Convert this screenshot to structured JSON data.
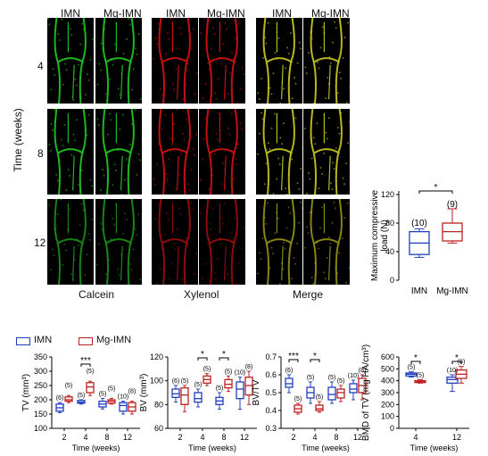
{
  "figure": {
    "col_headers": [
      "IMN",
      "Mg-IMN",
      "IMN",
      "Mg-IMN",
      "IMN",
      "Mg-IMN"
    ],
    "row_labels": [
      "4",
      "8",
      "12"
    ],
    "y_title": "Time (weeks)",
    "stain_labels": [
      "Calcein",
      "Xylenol",
      "Merge"
    ],
    "colors": {
      "calcein": "#22cc22",
      "xylenol": "#dd1111",
      "merge": "#cccc22",
      "imn": "#1f3fbf",
      "mg": "#c02020"
    }
  },
  "legend": {
    "imn_label": "IMN",
    "mg_label": "Mg-IMN"
  },
  "chart_data": [
    {
      "type": "box",
      "panel": "compressive",
      "ylabel": "Maximum compressive load (N)",
      "categories": [
        "IMN",
        "Mg-IMN"
      ],
      "ylim": [
        0,
        125
      ],
      "yticks": [
        0,
        40,
        80,
        120
      ],
      "n": [
        "(10)",
        "(9)"
      ],
      "significance": "*",
      "boxes": [
        {
          "min": 32,
          "q1": 36,
          "median": 52,
          "q3": 68,
          "max": 72
        },
        {
          "min": 52,
          "q1": 55,
          "median": 68,
          "q3": 80,
          "max": 100
        }
      ]
    },
    {
      "type": "box",
      "panel": "TV",
      "ylabel": "TV (mm³)",
      "xlabel": "Time (weeks)",
      "categories": [
        "2",
        "4",
        "8",
        "12"
      ],
      "ylim": [
        100,
        350
      ],
      "yticks": [
        100,
        150,
        200,
        250,
        300,
        350
      ],
      "n_imn": [
        "(6)",
        "(5)",
        "(5)",
        "(10)"
      ],
      "n_mg": [
        "(5)",
        "(5)",
        "(5)",
        "(8)"
      ],
      "significance": [
        {
          "at": "4",
          "mark": "***"
        }
      ],
      "imn": [
        {
          "min": 155,
          "q1": 160,
          "median": 172,
          "q3": 185,
          "max": 190
        },
        {
          "min": 185,
          "q1": 188,
          "median": 192,
          "q3": 198,
          "max": 200
        },
        {
          "min": 168,
          "q1": 175,
          "median": 185,
          "q3": 195,
          "max": 205
        },
        {
          "min": 150,
          "q1": 160,
          "median": 180,
          "q3": 190,
          "max": 195
        }
      ],
      "mg": [
        {
          "min": 190,
          "q1": 195,
          "median": 200,
          "q3": 210,
          "max": 215
        },
        {
          "min": 215,
          "q1": 225,
          "median": 245,
          "q3": 260,
          "max": 265
        },
        {
          "min": 185,
          "q1": 188,
          "median": 195,
          "q3": 200,
          "max": 205
        },
        {
          "min": 150,
          "q1": 160,
          "median": 175,
          "q3": 190,
          "max": 195
        }
      ]
    },
    {
      "type": "box",
      "panel": "BV",
      "ylabel": "BV (mm³)",
      "xlabel": "Time (weeks)",
      "categories": [
        "2",
        "4",
        "8",
        "12"
      ],
      "ylim": [
        60,
        120
      ],
      "yticks": [
        60,
        80,
        100,
        120
      ],
      "n_imn": [
        "(6)",
        "(5)",
        "(5)",
        "(10)"
      ],
      "n_mg": [
        "(5)",
        "(5)",
        "(5)",
        "(8)"
      ],
      "significance": [
        {
          "at": "4",
          "mark": "*"
        },
        {
          "at": "8",
          "mark": "*"
        }
      ],
      "imn": [
        {
          "min": 82,
          "q1": 86,
          "median": 89,
          "q3": 93,
          "max": 96
        },
        {
          "min": 78,
          "q1": 82,
          "median": 85,
          "q3": 90,
          "max": 93
        },
        {
          "min": 76,
          "q1": 80,
          "median": 83,
          "q3": 86,
          "max": 90
        },
        {
          "min": 76,
          "q1": 85,
          "median": 93,
          "q3": 99,
          "max": 103
        }
      ],
      "mg": [
        {
          "min": 74,
          "q1": 80,
          "median": 88,
          "q3": 94,
          "max": 96
        },
        {
          "min": 96,
          "q1": 98,
          "median": 101,
          "q3": 104,
          "max": 106
        },
        {
          "min": 91,
          "q1": 94,
          "median": 97,
          "q3": 101,
          "max": 104
        },
        {
          "min": 80,
          "q1": 88,
          "median": 96,
          "q3": 103,
          "max": 108
        }
      ]
    },
    {
      "type": "box",
      "panel": "BV/TV",
      "ylabel": "BV/TV",
      "xlabel": "Time (weeks)",
      "categories": [
        "2",
        "4",
        "8",
        "12"
      ],
      "ylim": [
        0.3,
        0.7
      ],
      "yticks": [
        0.3,
        0.4,
        0.5,
        0.6,
        0.7
      ],
      "n_imn": [
        "(6)",
        "(5)",
        "(5)",
        "(10)"
      ],
      "n_mg": [
        "(5)",
        "(5)",
        "(5)",
        "(8)"
      ],
      "significance": [
        {
          "at": "2",
          "mark": "***"
        },
        {
          "at": "4",
          "mark": "*"
        }
      ],
      "imn": [
        {
          "min": 0.5,
          "q1": 0.53,
          "median": 0.55,
          "q3": 0.58,
          "max": 0.6
        },
        {
          "min": 0.44,
          "q1": 0.47,
          "median": 0.5,
          "q3": 0.53,
          "max": 0.56
        },
        {
          "min": 0.44,
          "q1": 0.46,
          "median": 0.49,
          "q3": 0.53,
          "max": 0.56
        },
        {
          "min": 0.46,
          "q1": 0.5,
          "median": 0.52,
          "q3": 0.55,
          "max": 0.57
        }
      ],
      "mg": [
        {
          "min": 0.38,
          "q1": 0.39,
          "median": 0.41,
          "q3": 0.43,
          "max": 0.44
        },
        {
          "min": 0.39,
          "q1": 0.4,
          "median": 0.41,
          "q3": 0.43,
          "max": 0.45
        },
        {
          "min": 0.45,
          "q1": 0.47,
          "median": 0.5,
          "q3": 0.52,
          "max": 0.54
        },
        {
          "min": 0.46,
          "q1": 0.5,
          "median": 0.54,
          "q3": 0.58,
          "max": 0.6
        }
      ]
    },
    {
      "type": "box",
      "panel": "BMD",
      "ylabel": "BMD of TV (mg HA/cm³)",
      "xlabel": "Time (weeks)",
      "categories": [
        "4",
        "12"
      ],
      "ylim": [
        0,
        600
      ],
      "yticks": [
        0,
        100,
        200,
        300,
        400,
        500,
        600
      ],
      "n_imn": [
        "(5)",
        "(10)"
      ],
      "n_mg": [
        "(5)",
        "(8)"
      ],
      "significance": [
        {
          "at": "4",
          "mark": "*"
        },
        {
          "at": "12",
          "mark": "*"
        }
      ],
      "imn": [
        {
          "min": 430,
          "q1": 440,
          "median": 455,
          "q3": 465,
          "max": 475
        },
        {
          "min": 310,
          "q1": 380,
          "median": 410,
          "q3": 430,
          "max": 450
        }
      ],
      "mg": [
        {
          "min": 380,
          "q1": 385,
          "median": 395,
          "q3": 400,
          "max": 410
        },
        {
          "min": 380,
          "q1": 420,
          "median": 455,
          "q3": 490,
          "max": 520
        }
      ]
    }
  ]
}
